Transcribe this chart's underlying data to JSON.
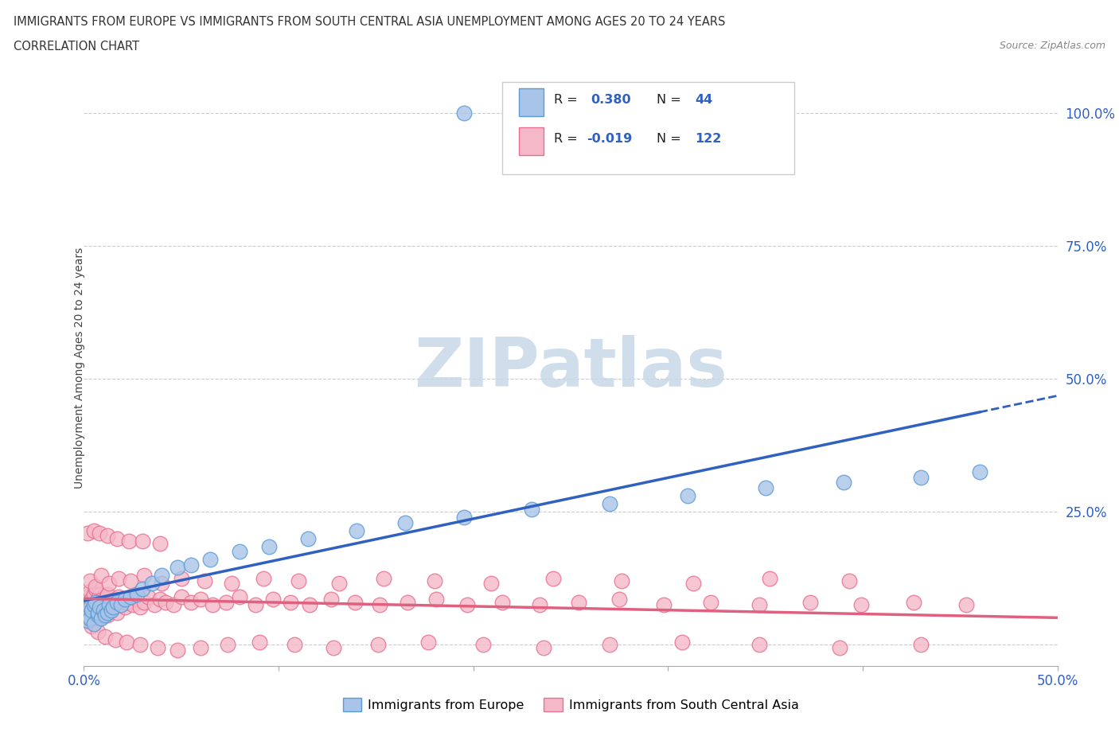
{
  "title_line1": "IMMIGRANTS FROM EUROPE VS IMMIGRANTS FROM SOUTH CENTRAL ASIA UNEMPLOYMENT AMONG AGES 20 TO 24 YEARS",
  "title_line2": "CORRELATION CHART",
  "source_text": "Source: ZipAtlas.com",
  "ylabel": "Unemployment Among Ages 20 to 24 years",
  "xlim": [
    0.0,
    0.5
  ],
  "ylim": [
    -0.04,
    1.08
  ],
  "xticks": [
    0.0,
    0.1,
    0.2,
    0.3,
    0.4,
    0.5
  ],
  "xticklabels": [
    "0.0%",
    "",
    "",
    "",
    "",
    "50.0%"
  ],
  "ytick_positions": [
    0.0,
    0.25,
    0.5,
    0.75,
    1.0
  ],
  "ytick_labels": [
    "",
    "25.0%",
    "50.0%",
    "75.0%",
    "100.0%"
  ],
  "grid_color": "#cccccc",
  "background_color": "#ffffff",
  "watermark_text": "ZIPatlas",
  "watermark_color": "#c8d8e8",
  "legend_europe_label": "Immigrants from Europe",
  "legend_asia_label": "Immigrants from South Central Asia",
  "europe_color": "#a8c4e8",
  "europe_edge": "#5b9bd5",
  "asia_color": "#f4b8c8",
  "asia_edge": "#e87090",
  "trend_europe_color": "#3060c0",
  "trend_asia_color": "#e06080",
  "europe_scatter_x": [
    0.001,
    0.002,
    0.002,
    0.003,
    0.003,
    0.004,
    0.005,
    0.005,
    0.006,
    0.007,
    0.007,
    0.008,
    0.009,
    0.01,
    0.011,
    0.012,
    0.013,
    0.014,
    0.015,
    0.017,
    0.019,
    0.021,
    0.024,
    0.027,
    0.03,
    0.035,
    0.04,
    0.048,
    0.055,
    0.065,
    0.08,
    0.095,
    0.115,
    0.14,
    0.165,
    0.195,
    0.23,
    0.27,
    0.31,
    0.35,
    0.39,
    0.43,
    0.46,
    0.195
  ],
  "europe_scatter_y": [
    0.055,
    0.06,
    0.045,
    0.07,
    0.05,
    0.065,
    0.075,
    0.04,
    0.08,
    0.055,
    0.06,
    0.07,
    0.05,
    0.065,
    0.055,
    0.06,
    0.075,
    0.065,
    0.07,
    0.08,
    0.075,
    0.085,
    0.09,
    0.095,
    0.105,
    0.115,
    0.13,
    0.145,
    0.15,
    0.16,
    0.175,
    0.185,
    0.2,
    0.215,
    0.23,
    0.24,
    0.255,
    0.265,
    0.28,
    0.295,
    0.305,
    0.315,
    0.325,
    1.0
  ],
  "asia_scatter_x": [
    0.001,
    0.001,
    0.002,
    0.002,
    0.003,
    0.003,
    0.004,
    0.004,
    0.005,
    0.005,
    0.005,
    0.006,
    0.006,
    0.007,
    0.007,
    0.008,
    0.008,
    0.009,
    0.009,
    0.01,
    0.01,
    0.011,
    0.011,
    0.012,
    0.012,
    0.013,
    0.014,
    0.015,
    0.016,
    0.017,
    0.018,
    0.019,
    0.02,
    0.021,
    0.022,
    0.024,
    0.025,
    0.027,
    0.029,
    0.031,
    0.033,
    0.036,
    0.039,
    0.042,
    0.046,
    0.05,
    0.055,
    0.06,
    0.066,
    0.073,
    0.08,
    0.088,
    0.097,
    0.106,
    0.116,
    0.127,
    0.139,
    0.152,
    0.166,
    0.181,
    0.197,
    0.215,
    0.234,
    0.254,
    0.275,
    0.298,
    0.322,
    0.347,
    0.373,
    0.399,
    0.426,
    0.453,
    0.003,
    0.006,
    0.009,
    0.013,
    0.018,
    0.024,
    0.031,
    0.04,
    0.05,
    0.062,
    0.076,
    0.092,
    0.11,
    0.131,
    0.154,
    0.18,
    0.209,
    0.241,
    0.276,
    0.313,
    0.352,
    0.393,
    0.004,
    0.007,
    0.011,
    0.016,
    0.022,
    0.029,
    0.038,
    0.048,
    0.06,
    0.074,
    0.09,
    0.108,
    0.128,
    0.151,
    0.177,
    0.205,
    0.236,
    0.27,
    0.307,
    0.347,
    0.388,
    0.43,
    0.002,
    0.005,
    0.008,
    0.012,
    0.017,
    0.023,
    0.03,
    0.039
  ],
  "asia_scatter_y": [
    0.06,
    0.08,
    0.055,
    0.09,
    0.045,
    0.1,
    0.065,
    0.085,
    0.055,
    0.095,
    0.04,
    0.105,
    0.05,
    0.075,
    0.085,
    0.05,
    0.095,
    0.06,
    0.08,
    0.055,
    0.09,
    0.065,
    0.085,
    0.055,
    0.095,
    0.065,
    0.08,
    0.07,
    0.085,
    0.06,
    0.09,
    0.075,
    0.085,
    0.07,
    0.08,
    0.09,
    0.075,
    0.085,
    0.07,
    0.08,
    0.09,
    0.075,
    0.085,
    0.08,
    0.075,
    0.09,
    0.08,
    0.085,
    0.075,
    0.08,
    0.09,
    0.075,
    0.085,
    0.08,
    0.075,
    0.085,
    0.08,
    0.075,
    0.08,
    0.085,
    0.075,
    0.08,
    0.075,
    0.08,
    0.085,
    0.075,
    0.08,
    0.075,
    0.08,
    0.075,
    0.08,
    0.075,
    0.12,
    0.11,
    0.13,
    0.115,
    0.125,
    0.12,
    0.13,
    0.115,
    0.125,
    0.12,
    0.115,
    0.125,
    0.12,
    0.115,
    0.125,
    0.12,
    0.115,
    0.125,
    0.12,
    0.115,
    0.125,
    0.12,
    0.035,
    0.025,
    0.015,
    0.01,
    0.005,
    0.0,
    -0.005,
    -0.01,
    -0.005,
    0.0,
    0.005,
    0.0,
    -0.005,
    0.0,
    0.005,
    0.0,
    -0.005,
    0.0,
    0.005,
    0.0,
    -0.005,
    0.0,
    0.21,
    0.215,
    0.21,
    0.205,
    0.2,
    0.195,
    0.195,
    0.19
  ]
}
